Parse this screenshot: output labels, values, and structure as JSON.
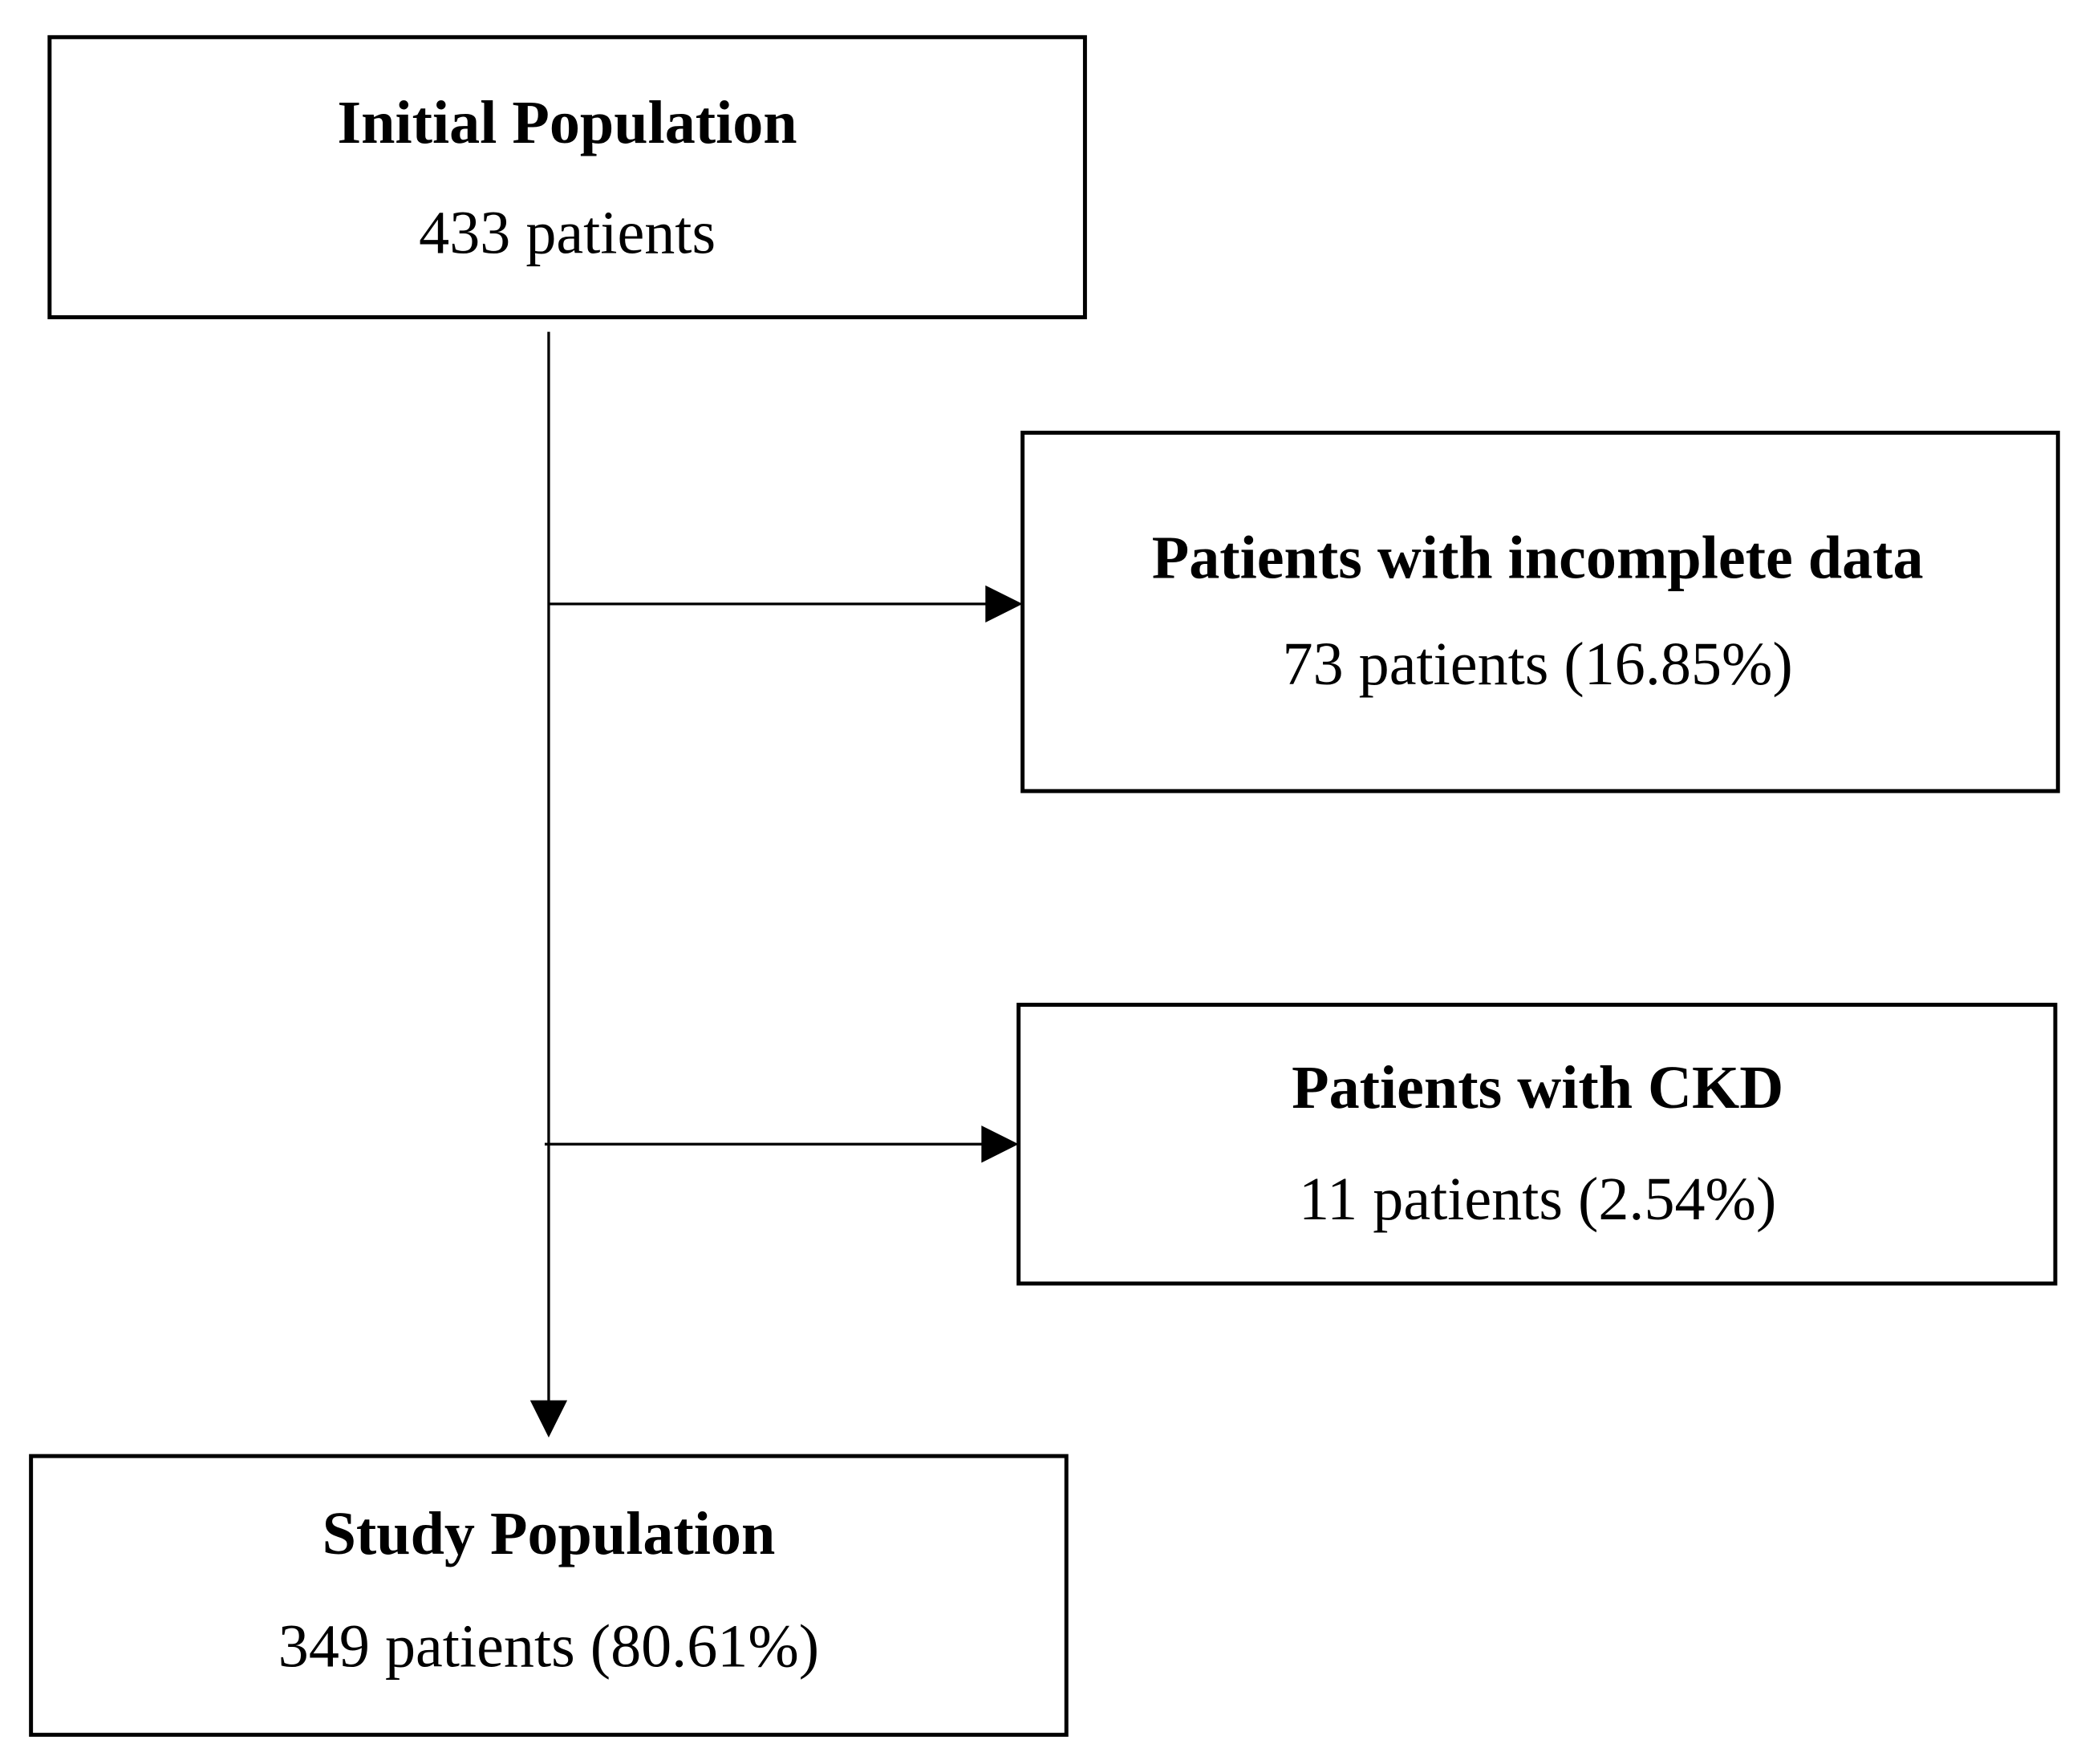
{
  "nodes": [
    {
      "title": "Initial Population",
      "text": "433 patients"
    },
    {
      "title": "Patients with incomplete data",
      "text": "73 patients (16.85%)"
    },
    {
      "title": "Patients with CKD",
      "text": "11 patients (2.54%)"
    },
    {
      "title": "Study Population",
      "text": "349 patients (80.61%)"
    }
  ]
}
